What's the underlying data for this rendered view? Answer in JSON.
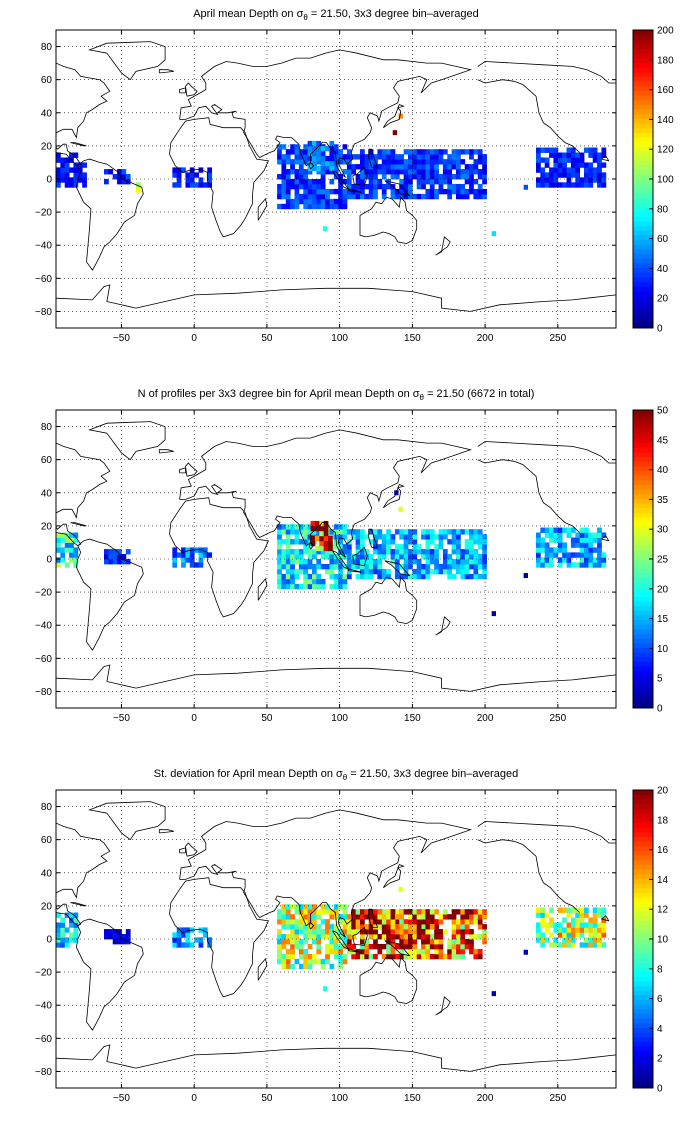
{
  "chart_data": [
    {
      "type": "heatmap",
      "title_parts": [
        "April mean Depth on ",
        "σ",
        "θ",
        " = 21.50, 3x3 degree bin–averaged"
      ],
      "xlim": [
        -95,
        290
      ],
      "ylim": [
        -90,
        90
      ],
      "xticks": [
        -50,
        0,
        50,
        100,
        150,
        200,
        250
      ],
      "yticks": [
        -80,
        -60,
        -40,
        -20,
        0,
        20,
        40,
        60,
        80
      ],
      "colorbar": {
        "min": 0,
        "max": 200,
        "ticks": [
          0,
          20,
          40,
          60,
          80,
          100,
          120,
          140,
          160,
          180,
          200
        ]
      },
      "grid": true,
      "regions": [
        {
          "lon": [
            -95,
            -80
          ],
          "lat": [
            -5,
            15
          ],
          "value": 30
        },
        {
          "lon": [
            -80,
            -74
          ],
          "lat": [
            -5,
            8
          ],
          "value": 25
        },
        {
          "lon": [
            -62,
            -44
          ],
          "lat": [
            -3,
            5
          ],
          "value": 30
        },
        {
          "lon": [
            -40,
            -34
          ],
          "lat": [
            -8,
            -2
          ],
          "value": 120
        },
        {
          "lon": [
            -15,
            10
          ],
          "lat": [
            -5,
            5
          ],
          "value": 30
        },
        {
          "lon": [
            57,
            105
          ],
          "lat": [
            -18,
            20
          ],
          "value": 35
        },
        {
          "lon": [
            78,
            95
          ],
          "lat": [
            5,
            22
          ],
          "value": 45
        },
        {
          "lon": [
            105,
            200
          ],
          "lat": [
            -12,
            18
          ],
          "value": 35
        },
        {
          "lon": [
            235,
            282
          ],
          "lat": [
            -5,
            18
          ],
          "value": 30
        }
      ],
      "points": [
        {
          "lon": 142,
          "lat": 38,
          "value": 150
        },
        {
          "lon": 138,
          "lat": 28,
          "value": 200
        },
        {
          "lon": 90,
          "lat": -30,
          "value": 80
        },
        {
          "lon": 206,
          "lat": -33,
          "value": 70
        },
        {
          "lon": 228,
          "lat": -5,
          "value": 40
        }
      ]
    },
    {
      "type": "heatmap",
      "title_parts": [
        "N of profiles per 3x3 degree bin for April mean Depth on ",
        "σ",
        "θ",
        " = 21.50 (6672 in total)"
      ],
      "xlim": [
        -95,
        290
      ],
      "ylim": [
        -90,
        90
      ],
      "xticks": [
        -50,
        0,
        50,
        100,
        150,
        200,
        250
      ],
      "yticks": [
        -80,
        -60,
        -40,
        -20,
        0,
        20,
        40,
        60,
        80
      ],
      "colorbar": {
        "min": 0,
        "max": 50,
        "ticks": [
          0,
          5,
          10,
          15,
          20,
          25,
          30,
          35,
          40,
          45,
          50
        ]
      },
      "grid": true,
      "regions": [
        {
          "lon": [
            -95,
            -80
          ],
          "lat": [
            -5,
            15
          ],
          "value": 20
        },
        {
          "lon": [
            -62,
            -44
          ],
          "lat": [
            -3,
            5
          ],
          "value": 8
        },
        {
          "lon": [
            -15,
            10
          ],
          "lat": [
            -5,
            5
          ],
          "value": 12
        },
        {
          "lon": [
            57,
            105
          ],
          "lat": [
            -18,
            20
          ],
          "value": 18
        },
        {
          "lon": [
            80,
            95
          ],
          "lat": [
            5,
            22
          ],
          "value": 45
        },
        {
          "lon": [
            105,
            200
          ],
          "lat": [
            -12,
            18
          ],
          "value": 15
        },
        {
          "lon": [
            235,
            282
          ],
          "lat": [
            -5,
            18
          ],
          "value": 15
        }
      ],
      "points": [
        {
          "lon": 142,
          "lat": 30,
          "value": 30
        },
        {
          "lon": 139,
          "lat": 40,
          "value": 3
        },
        {
          "lon": 206,
          "lat": -33,
          "value": 2
        },
        {
          "lon": 228,
          "lat": -10,
          "value": 2
        }
      ]
    },
    {
      "type": "heatmap",
      "title_parts": [
        "St. deviation for April mean Depth on ",
        "σ",
        "θ",
        " = 21.50, 3x3 degree bin–averaged"
      ],
      "xlim": [
        -95,
        290
      ],
      "ylim": [
        -90,
        90
      ],
      "xticks": [
        -50,
        0,
        50,
        100,
        150,
        200,
        250
      ],
      "yticks": [
        -80,
        -60,
        -40,
        -20,
        0,
        20,
        40,
        60,
        80
      ],
      "colorbar": {
        "min": 0,
        "max": 20,
        "ticks": [
          0,
          2,
          4,
          6,
          8,
          10,
          12,
          14,
          16,
          18,
          20
        ]
      },
      "grid": true,
      "regions": [
        {
          "lon": [
            -95,
            -80
          ],
          "lat": [
            -5,
            15
          ],
          "value": 7
        },
        {
          "lon": [
            -62,
            -44
          ],
          "lat": [
            -3,
            5
          ],
          "value": 2
        },
        {
          "lon": [
            -15,
            10
          ],
          "lat": [
            -5,
            5
          ],
          "value": 5
        },
        {
          "lon": [
            57,
            105
          ],
          "lat": [
            -18,
            20
          ],
          "value": 11
        },
        {
          "lon": [
            105,
            200
          ],
          "lat": [
            -12,
            18
          ],
          "value": 16
        },
        {
          "lon": [
            120,
            165
          ],
          "lat": [
            0,
            18
          ],
          "value": 19
        },
        {
          "lon": [
            235,
            282
          ],
          "lat": [
            -5,
            18
          ],
          "value": 11
        }
      ],
      "points": [
        {
          "lon": 142,
          "lat": 30,
          "value": 12
        },
        {
          "lon": 90,
          "lat": -30,
          "value": 8
        },
        {
          "lon": 206,
          "lat": -33,
          "value": 1
        },
        {
          "lon": 228,
          "lat": -8,
          "value": 1
        }
      ]
    }
  ]
}
